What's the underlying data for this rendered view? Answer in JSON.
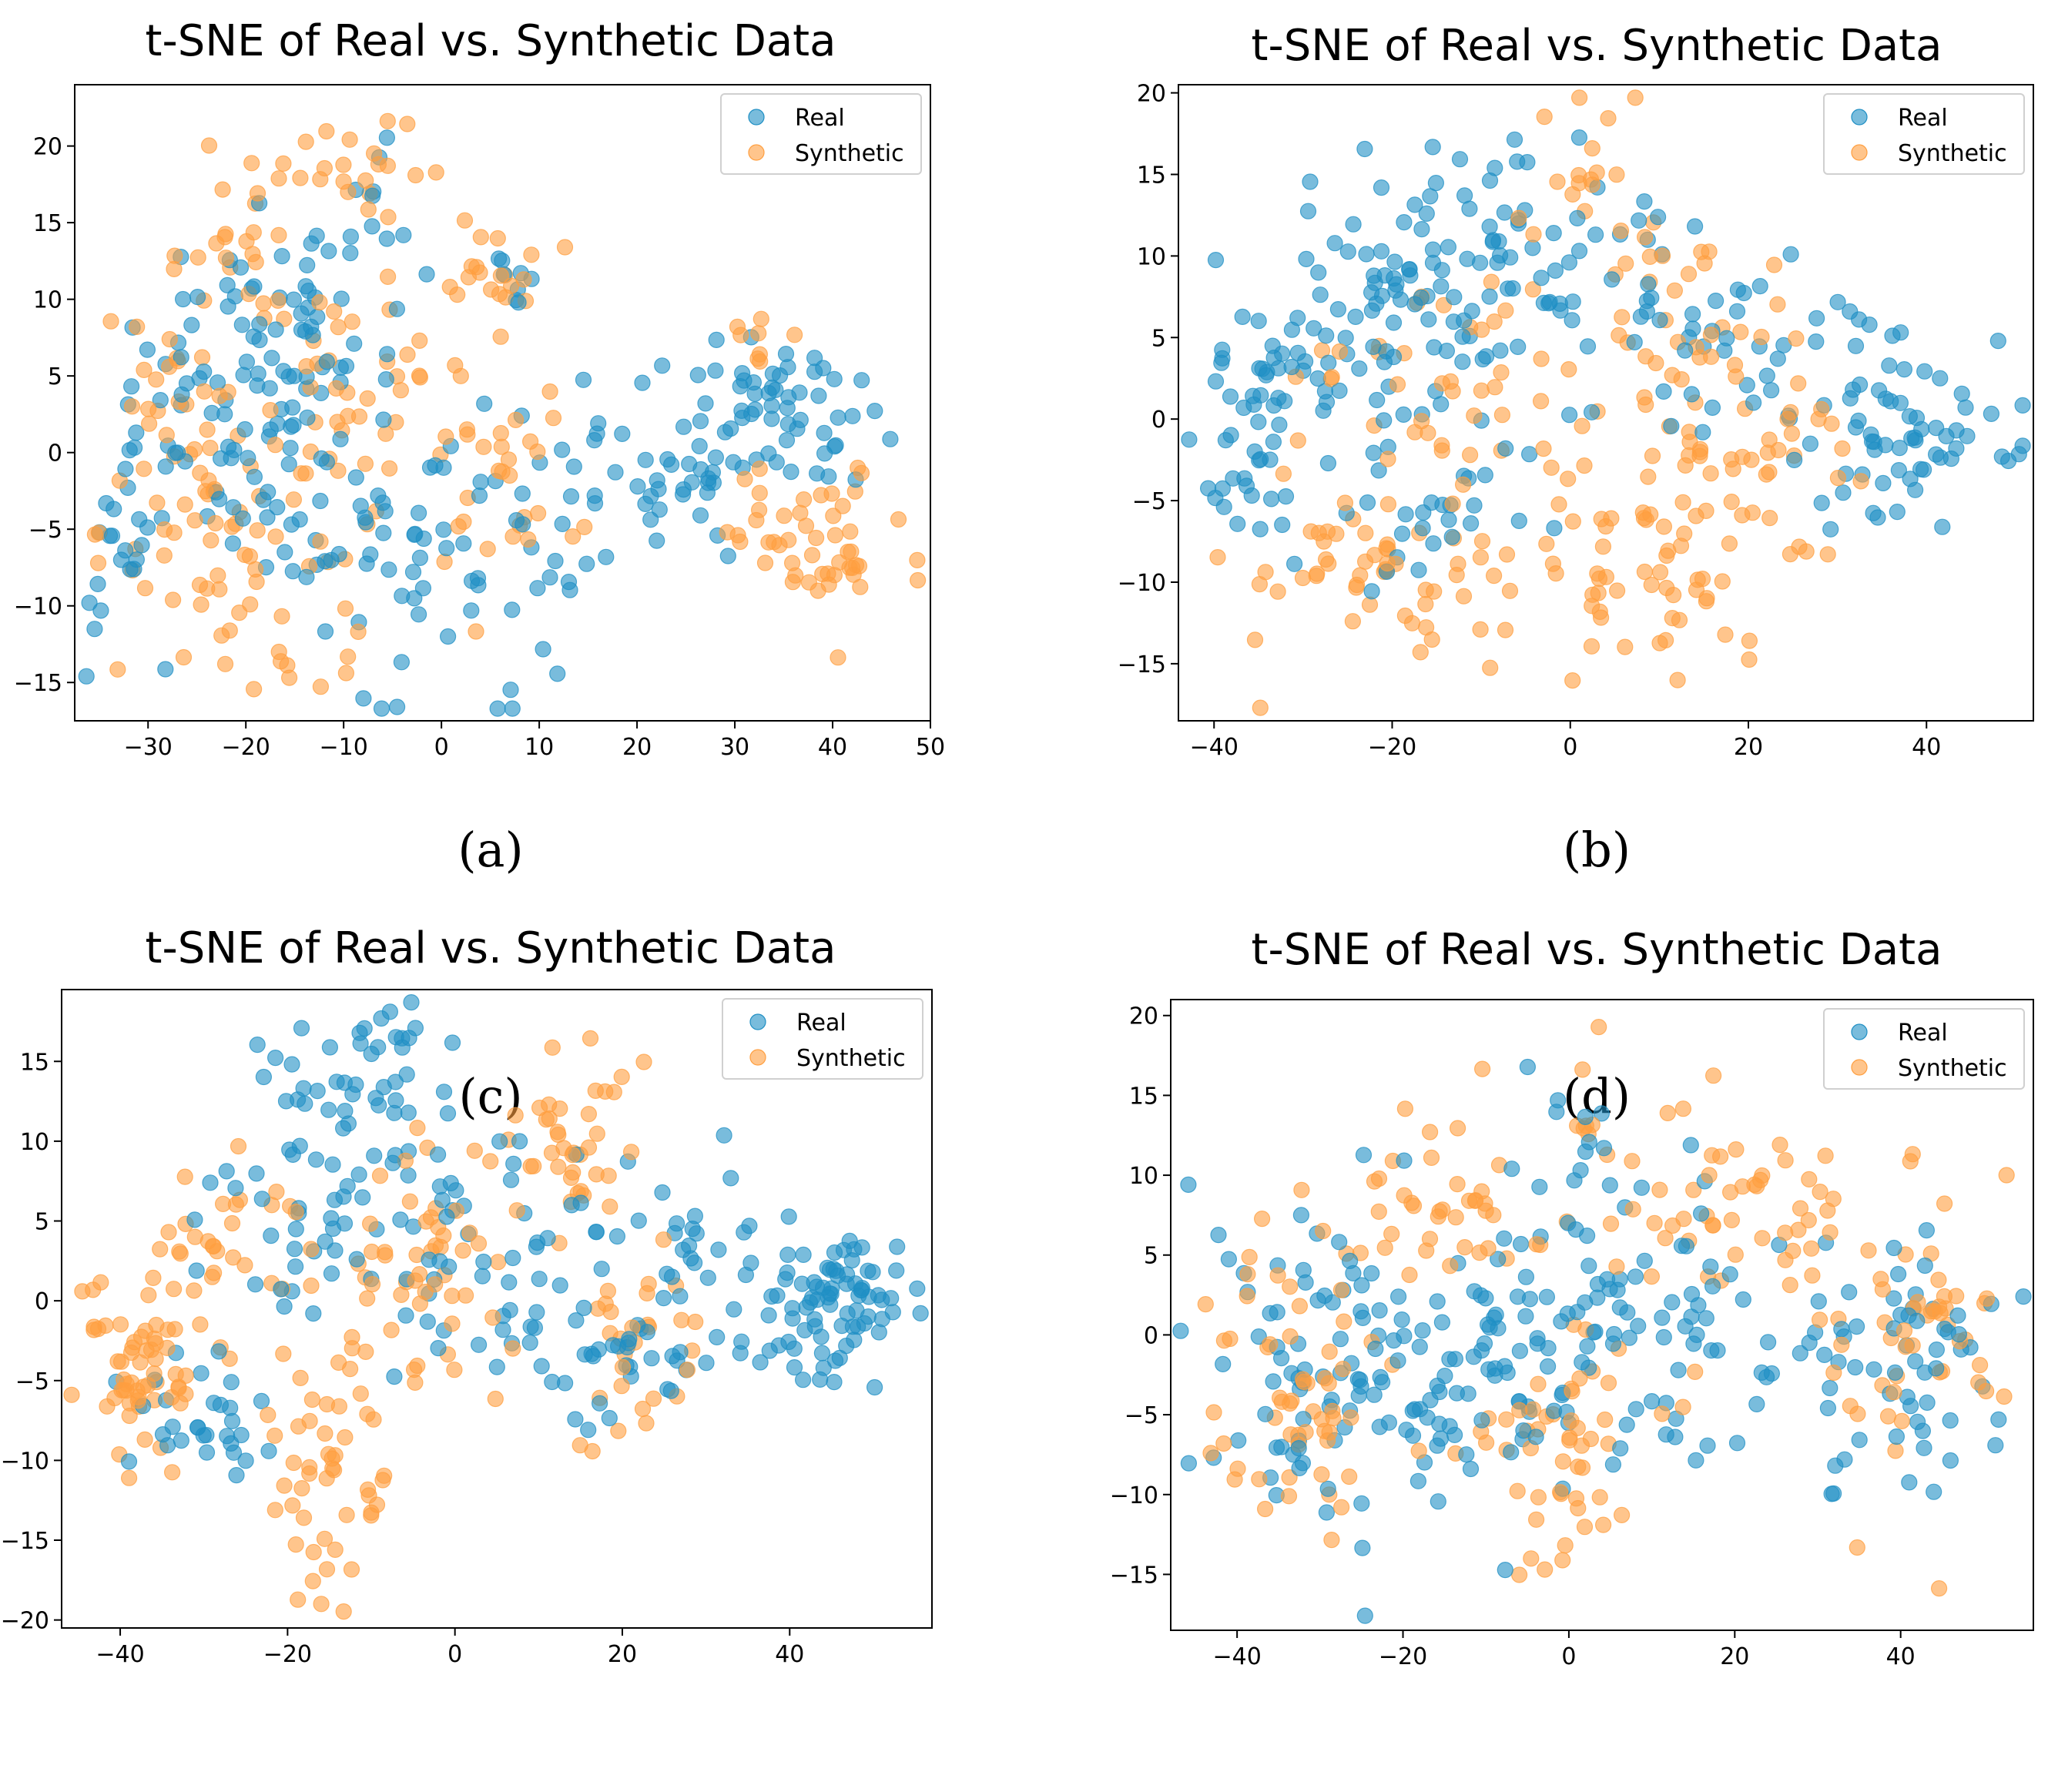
{
  "figure": {
    "panels": [
      "(a)",
      "(b)",
      "(c)",
      "(d)"
    ]
  },
  "colors": {
    "real": "#1f8fc4",
    "synthetic": "#ff9f40"
  },
  "chart_data": [
    {
      "type": "scatter",
      "title": "t-SNE of Real vs. Synthetic Data",
      "caption": "(a)",
      "xlim": [
        -37.5,
        50
      ],
      "ylim": [
        -17.5,
        24
      ],
      "xticks": [
        -30,
        -20,
        -10,
        0,
        10,
        20,
        30,
        40,
        50
      ],
      "yticks": [
        -15,
        -10,
        -5,
        0,
        5,
        10,
        15,
        20
      ],
      "legend": [
        "Real",
        "Synthetic"
      ],
      "legend_loc": "top-right",
      "series": [
        {
          "name": "Real",
          "regions": [
            {
              "cx": -22,
              "cy": 4,
              "sx": 7,
              "sy": 5,
              "n": 70
            },
            {
              "cx": -12,
              "cy": 9,
              "sx": 6,
              "sy": 4,
              "n": 40
            },
            {
              "cx": -10,
              "cy": -6,
              "sx": 7,
              "sy": 4,
              "n": 40
            },
            {
              "cx": 2,
              "cy": -7,
              "sx": 6,
              "sy": 4,
              "n": 40
            },
            {
              "cx": -33,
              "cy": -6,
              "sx": 2,
              "sy": 3,
              "n": 20
            },
            {
              "cx": 20,
              "cy": -2,
              "sx": 7,
              "sy": 3,
              "n": 40
            },
            {
              "cx": 35,
              "cy": 2,
              "sx": 5,
              "sy": 2.5,
              "n": 60
            },
            {
              "cx": -6,
              "cy": 18,
              "sx": 2,
              "sy": 2,
              "n": 6
            },
            {
              "cx": 8,
              "cy": 12,
              "sx": 3,
              "sy": 1.5,
              "n": 8
            }
          ]
        },
        {
          "name": "Synthetic",
          "regions": [
            {
              "cx": -20,
              "cy": 14,
              "sx": 5,
              "sy": 3,
              "n": 30
            },
            {
              "cx": -7,
              "cy": 18,
              "sx": 3,
              "sy": 2,
              "n": 18
            },
            {
              "cx": 4,
              "cy": 12,
              "sx": 4,
              "sy": 2,
              "n": 20
            },
            {
              "cx": -22,
              "cy": -5,
              "sx": 6,
              "sy": 4,
              "n": 60
            },
            {
              "cx": -28,
              "cy": 3,
              "sx": 3,
              "sy": 3,
              "n": 20
            },
            {
              "cx": -8,
              "cy": 4,
              "sx": 6,
              "sy": 4,
              "n": 40
            },
            {
              "cx": 7,
              "cy": -2,
              "sx": 4,
              "sy": 4,
              "n": 25
            },
            {
              "cx": 38,
              "cy": -6,
              "sx": 5,
              "sy": 2.5,
              "n": 50
            },
            {
              "cx": 32,
              "cy": 7,
              "sx": 3,
              "sy": 1.5,
              "n": 8
            },
            {
              "cx": -12,
              "cy": -13,
              "sx": 4,
              "sy": 1.5,
              "n": 10
            }
          ]
        }
      ]
    },
    {
      "type": "scatter",
      "title": "t-SNE of Real vs. Synthetic Data",
      "caption": "(b)",
      "xlim": [
        -44,
        52
      ],
      "ylim": [
        -18.5,
        20.5
      ],
      "xticks": [
        -40,
        -20,
        0,
        20,
        40
      ],
      "yticks": [
        -15,
        -10,
        -5,
        0,
        5,
        10,
        15,
        20
      ],
      "legend": [
        "Real",
        "Synthetic"
      ],
      "legend_loc": "top-right",
      "series": [
        {
          "name": "Real",
          "regions": [
            {
              "cx": -35,
              "cy": 0,
              "sx": 4,
              "sy": 5,
              "n": 50
            },
            {
              "cx": -20,
              "cy": 6,
              "sx": 7,
              "sy": 4,
              "n": 70
            },
            {
              "cx": -5,
              "cy": 10,
              "sx": 7,
              "sy": 3.5,
              "n": 60
            },
            {
              "cx": 18,
              "cy": 5,
              "sx": 8,
              "sy": 4,
              "n": 50
            },
            {
              "cx": 38,
              "cy": -1,
              "sx": 6,
              "sy": 3,
              "n": 60
            },
            {
              "cx": -15,
              "cy": -5,
              "sx": 6,
              "sy": 3,
              "n": 30
            }
          ]
        },
        {
          "name": "Synthetic",
          "regions": [
            {
              "cx": -22,
              "cy": -10,
              "sx": 8,
              "sy": 3,
              "n": 60
            },
            {
              "cx": -15,
              "cy": 2,
              "sx": 8,
              "sy": 3,
              "n": 40
            },
            {
              "cx": 10,
              "cy": -8,
              "sx": 8,
              "sy": 4,
              "n": 70
            },
            {
              "cx": 15,
              "cy": 5,
              "sx": 6,
              "sy": 4,
              "n": 40
            },
            {
              "cx": 2,
              "cy": 15,
              "sx": 4,
              "sy": 2.5,
              "n": 20
            },
            {
              "cx": 25,
              "cy": -3,
              "sx": 3,
              "sy": 4,
              "n": 20
            }
          ]
        }
      ]
    },
    {
      "type": "scatter",
      "title": "t-SNE of Real vs. Synthetic Data",
      "caption": "(c)",
      "xlim": [
        -47,
        57
      ],
      "ylim": [
        -20.5,
        19.5
      ],
      "xticks": [
        -40,
        -20,
        0,
        20,
        40
      ],
      "yticks": [
        -20,
        -15,
        -10,
        -5,
        0,
        5,
        10,
        15
      ],
      "legend": [
        "Real",
        "Synthetic"
      ],
      "legend_loc": "top-right",
      "series": [
        {
          "name": "Real",
          "regions": [
            {
              "cx": -12,
              "cy": 13,
              "sx": 6,
              "sy": 3,
              "n": 50
            },
            {
              "cx": -18,
              "cy": 5,
              "sx": 7,
              "sy": 3,
              "n": 40
            },
            {
              "cx": 5,
              "cy": 2,
              "sx": 7,
              "sy": 4,
              "n": 50
            },
            {
              "cx": 20,
              "cy": -4,
              "sx": 8,
              "sy": 3,
              "n": 40
            },
            {
              "cx": 45,
              "cy": 0,
              "sx": 5,
              "sy": 2.5,
              "n": 80
            },
            {
              "cx": 30,
              "cy": 3,
              "sx": 3,
              "sy": 3,
              "n": 20
            },
            {
              "cx": -30,
              "cy": -8,
              "sx": 5,
              "sy": 2.5,
              "n": 30
            }
          ]
        },
        {
          "name": "Synthetic",
          "regions": [
            {
              "cx": -38,
              "cy": -4,
              "sx": 4,
              "sy": 3.5,
              "n": 60
            },
            {
              "cx": -28,
              "cy": 3,
              "sx": 5,
              "sy": 3,
              "n": 30
            },
            {
              "cx": -15,
              "cy": -10,
              "sx": 4,
              "sy": 4,
              "n": 50
            },
            {
              "cx": -5,
              "cy": 3,
              "sx": 6,
              "sy": 4,
              "n": 50
            },
            {
              "cx": 15,
              "cy": 10,
              "sx": 5,
              "sy": 3,
              "n": 40
            },
            {
              "cx": 20,
              "cy": -2,
              "sx": 6,
              "sy": 3,
              "n": 30
            }
          ]
        }
      ]
    },
    {
      "type": "scatter",
      "title": "t-SNE of Real vs. Synthetic Data",
      "caption": "(d)",
      "xlim": [
        -48,
        56
      ],
      "ylim": [
        -18.5,
        21
      ],
      "xticks": [
        -40,
        -20,
        0,
        20,
        40
      ],
      "yticks": [
        -15,
        -10,
        -5,
        0,
        5,
        10,
        15,
        20
      ],
      "legend": [
        "Real",
        "Synthetic"
      ],
      "legend_loc": "top-right",
      "series": [
        {
          "name": "Real",
          "regions": [
            {
              "cx": -30,
              "cy": -3,
              "sx": 8,
              "sy": 5,
              "n": 80
            },
            {
              "cx": -10,
              "cy": -2,
              "sx": 8,
              "sy": 5,
              "n": 80
            },
            {
              "cx": 12,
              "cy": 2,
              "sx": 8,
              "sy": 5,
              "n": 70
            },
            {
              "cx": 40,
              "cy": -1,
              "sx": 7,
              "sy": 4,
              "n": 60
            },
            {
              "cx": 0,
              "cy": 13,
              "sx": 3,
              "sy": 3,
              "n": 10
            }
          ]
        },
        {
          "name": "Synthetic",
          "regions": [
            {
              "cx": -32,
              "cy": -4,
              "sx": 6,
              "sy": 5,
              "n": 60
            },
            {
              "cx": -15,
              "cy": 8,
              "sx": 6,
              "sy": 3,
              "n": 40
            },
            {
              "cx": 0,
              "cy": -8,
              "sx": 6,
              "sy": 4,
              "n": 50
            },
            {
              "cx": 20,
              "cy": 8,
              "sx": 7,
              "sy": 3,
              "n": 50
            },
            {
              "cx": 42,
              "cy": 0,
              "sx": 6,
              "sy": 5,
              "n": 50
            },
            {
              "cx": 2,
              "cy": 15,
              "sx": 2,
              "sy": 2,
              "n": 8
            }
          ]
        }
      ]
    }
  ]
}
